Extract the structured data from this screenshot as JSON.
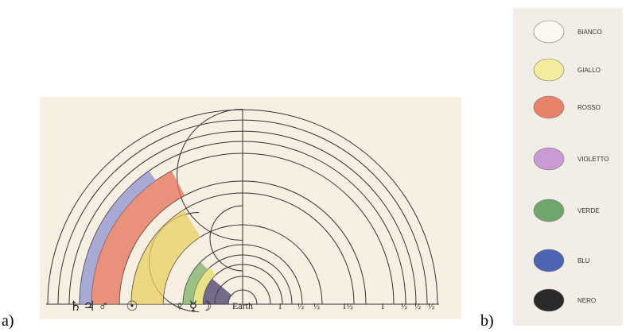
{
  "panel_a": {
    "label": "a)",
    "symbols": [
      "♄",
      "♃",
      "♂",
      "☉",
      "♀",
      "☿",
      "☽"
    ],
    "scale_labels": [
      "Earth",
      "1",
      "½",
      "½",
      "1½",
      "1",
      "½",
      "½",
      "½"
    ]
  },
  "panel_b": {
    "label": "b)",
    "swatches": [
      {
        "name": "BIANCO",
        "color": "#fbf8f2"
      },
      {
        "name": "GIALLO",
        "color": "#f4ec9c"
      },
      {
        "name": "ROSSO",
        "color": "#e9826a"
      },
      {
        "name": "VIOLETTO",
        "color": "#c99ad3"
      },
      {
        "name": "VERDE",
        "color": "#6fa66c"
      },
      {
        "name": "BLU",
        "color": "#4d64b3"
      },
      {
        "name": "NERO",
        "color": "#2a2a2a"
      }
    ]
  }
}
